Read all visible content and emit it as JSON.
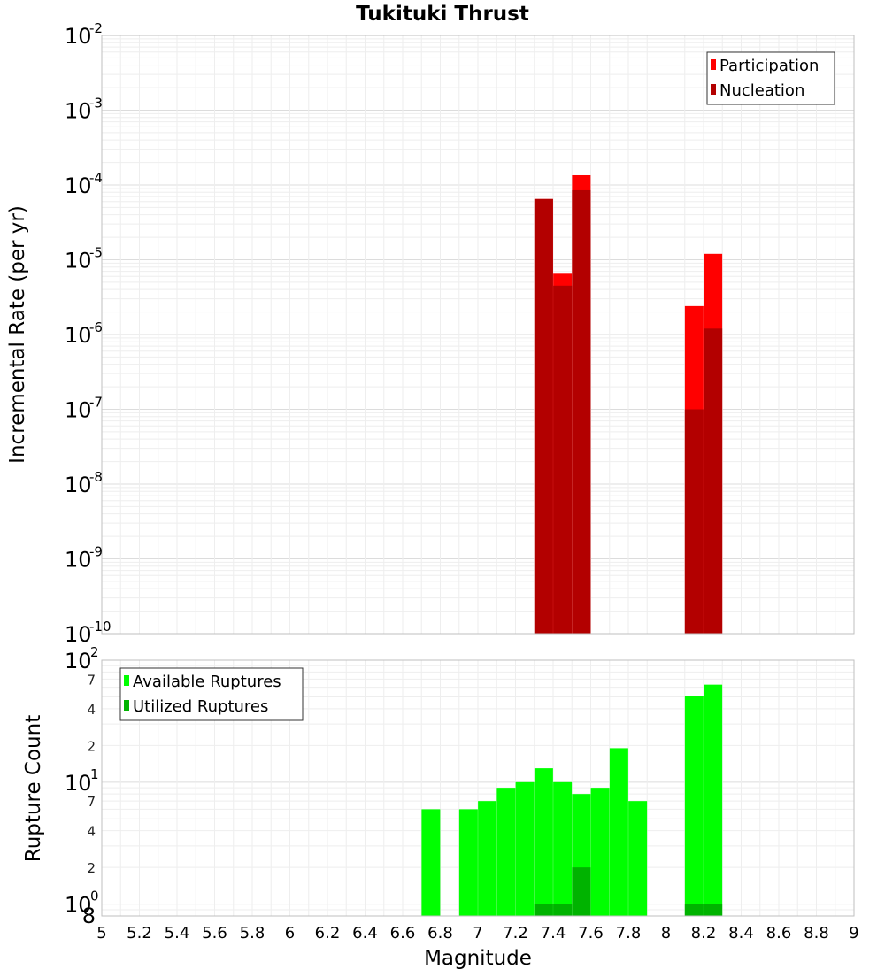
{
  "chart_data": [
    {
      "id": "rate",
      "type": "bar",
      "title": "Tukituki Thrust",
      "ylabel": "Incremental Rate (per yr)",
      "xlabel": "",
      "yscale": "log",
      "ylim": [
        1e-10,
        0.01
      ],
      "xlim": [
        5,
        9
      ],
      "grid": true,
      "legend_position": "top-right",
      "major_ticks": [
        {
          "base": "10",
          "exp": "-10",
          "value": 1e-10
        },
        {
          "base": "10",
          "exp": "-9",
          "value": 1e-09
        },
        {
          "base": "10",
          "exp": "-8",
          "value": 1e-08
        },
        {
          "base": "10",
          "exp": "-7",
          "value": 1e-07
        },
        {
          "base": "10",
          "exp": "-6",
          "value": 1e-06
        },
        {
          "base": "10",
          "exp": "-5",
          "value": 1e-05
        },
        {
          "base": "10",
          "exp": "-4",
          "value": 0.0001
        },
        {
          "base": "10",
          "exp": "-3",
          "value": 0.001
        },
        {
          "base": "10",
          "exp": "-2",
          "value": 0.01
        }
      ],
      "series": [
        {
          "name": "Participation",
          "color": "#ff0000",
          "points": [
            {
              "x": 7.35,
              "y": 6.5e-05
            },
            {
              "x": 7.45,
              "y": 6.5e-06
            },
            {
              "x": 7.55,
              "y": 0.000135
            },
            {
              "x": 8.15,
              "y": 2.4e-06
            },
            {
              "x": 8.25,
              "y": 1.2e-05
            }
          ]
        },
        {
          "name": "Nucleation",
          "color": "#b30000",
          "points": [
            {
              "x": 7.35,
              "y": 6.5e-05
            },
            {
              "x": 7.45,
              "y": 4.5e-06
            },
            {
              "x": 7.55,
              "y": 8.5e-05
            },
            {
              "x": 8.15,
              "y": 1e-07
            },
            {
              "x": 8.25,
              "y": 1.2e-06
            }
          ]
        }
      ]
    },
    {
      "id": "count",
      "type": "bar",
      "title": "",
      "ylabel": "Rupture Count",
      "xlabel": "Magnitude",
      "yscale": "log",
      "ylim": [
        0.8,
        100
      ],
      "xlim": [
        5,
        9
      ],
      "grid": true,
      "legend_position": "top-left",
      "x_ticks": [
        "5",
        "5.2",
        "5.4",
        "5.6",
        "5.8",
        "6",
        "6.2",
        "6.4",
        "6.6",
        "6.8",
        "7",
        "7.2",
        "7.4",
        "7.6",
        "7.8",
        "8",
        "8.2",
        "8.4",
        "8.6",
        "8.8",
        "9"
      ],
      "major_ticks": [
        {
          "base": "10",
          "exp": "0",
          "value": 1
        },
        {
          "base": "10",
          "exp": "1",
          "value": 10
        },
        {
          "base": "10",
          "exp": "2",
          "value": 100
        }
      ],
      "minor_ticks": [
        {
          "label": "8",
          "value": 0.8
        },
        {
          "label": "2",
          "value": 2
        },
        {
          "label": "4",
          "value": 4
        },
        {
          "label": "7",
          "value": 7
        },
        {
          "label": "2",
          "value": 20
        },
        {
          "label": "4",
          "value": 40
        },
        {
          "label": "7",
          "value": 70
        }
      ],
      "series": [
        {
          "name": "Available Ruptures",
          "color": "#00ff00",
          "points": [
            {
              "x": 6.75,
              "y": 6
            },
            {
              "x": 6.95,
              "y": 6
            },
            {
              "x": 7.05,
              "y": 7
            },
            {
              "x": 7.15,
              "y": 9
            },
            {
              "x": 7.25,
              "y": 10
            },
            {
              "x": 7.35,
              "y": 13
            },
            {
              "x": 7.45,
              "y": 10
            },
            {
              "x": 7.55,
              "y": 8
            },
            {
              "x": 7.65,
              "y": 9
            },
            {
              "x": 7.75,
              "y": 19
            },
            {
              "x": 7.85,
              "y": 7
            },
            {
              "x": 8.15,
              "y": 51
            },
            {
              "x": 8.25,
              "y": 63
            }
          ]
        },
        {
          "name": "Utilized Ruptures",
          "color": "#00b300",
          "points": [
            {
              "x": 7.35,
              "y": 1
            },
            {
              "x": 7.45,
              "y": 1
            },
            {
              "x": 7.55,
              "y": 2
            },
            {
              "x": 8.15,
              "y": 1
            },
            {
              "x": 8.25,
              "y": 1
            }
          ]
        }
      ]
    }
  ]
}
